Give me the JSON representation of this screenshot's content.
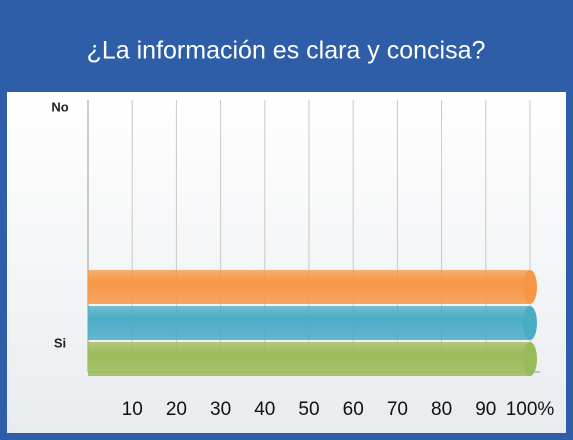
{
  "chart_data": {
    "type": "bar",
    "orientation": "horizontal",
    "title": "¿La información es clara y concisa?",
    "categories": [
      "No",
      "Si"
    ],
    "series": [
      {
        "color": "#f79646",
        "values": [
          0,
          100
        ]
      },
      {
        "color": "#4bacc6",
        "values": [
          0,
          100
        ]
      },
      {
        "color": "#9bbb59",
        "values": [
          0,
          100
        ]
      }
    ],
    "xlim": [
      0,
      100
    ],
    "xticks": [
      10,
      20,
      30,
      40,
      50,
      60,
      70,
      80,
      90,
      {
        "value": 100,
        "label": "100%"
      }
    ],
    "grid": true
  }
}
